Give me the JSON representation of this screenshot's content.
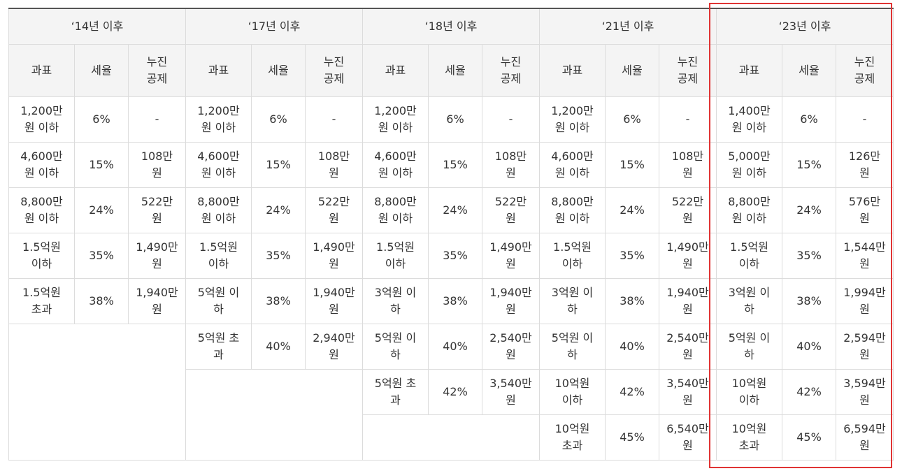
{
  "periods": [
    "‘14년 이후",
    "‘17년 이후",
    "‘18년 이후",
    "‘21년 이후",
    "‘23년 이후"
  ],
  "columns": {
    "base": "과표",
    "rate": "세율",
    "deduction": "누진\n공제"
  },
  "p14": [
    [
      "1,200만\n원 이하",
      "6%",
      "-"
    ],
    [
      "4,600만\n원 이하",
      "15%",
      "108만\n원"
    ],
    [
      "8,800만\n원 이하",
      "24%",
      "522만\n원"
    ],
    [
      "1.5억원\n이하",
      "35%",
      "1,490만\n원"
    ],
    [
      "1.5억원\n초과",
      "38%",
      "1,940만\n원"
    ]
  ],
  "p17": [
    [
      "1,200만\n원 이하",
      "6%",
      "-"
    ],
    [
      "4,600만\n원 이하",
      "15%",
      "108만\n원"
    ],
    [
      "8,800만\n원 이하",
      "24%",
      "522만\n원"
    ],
    [
      "1.5억원\n이하",
      "35%",
      "1,490만\n원"
    ],
    [
      "5억원 이\n하",
      "38%",
      "1,940만\n원"
    ],
    [
      "5억원 초\n과",
      "40%",
      "2,940만\n원"
    ]
  ],
  "p18": [
    [
      "1,200만\n원 이하",
      "6%",
      "-"
    ],
    [
      "4,600만\n원 이하",
      "15%",
      "108만\n원"
    ],
    [
      "8,800만\n원 이하",
      "24%",
      "522만\n원"
    ],
    [
      "1.5억원\n이하",
      "35%",
      "1,490만\n원"
    ],
    [
      "3억원 이\n하",
      "38%",
      "1,940만\n원"
    ],
    [
      "5억원 이\n하",
      "40%",
      "2,540만\n원"
    ],
    [
      "5억원 초\n과",
      "42%",
      "3,540만\n원"
    ]
  ],
  "p21": [
    [
      "1,200만\n원 이하",
      "6%",
      "-"
    ],
    [
      "4,600만\n원 이하",
      "15%",
      "108만\n원"
    ],
    [
      "8,800만\n원 이하",
      "24%",
      "522만\n원"
    ],
    [
      "1.5억원\n이하",
      "35%",
      "1,490만\n원"
    ],
    [
      "3억원 이\n하",
      "38%",
      "1,940만\n원"
    ],
    [
      "5억원 이\n하",
      "40%",
      "2,540만\n원"
    ],
    [
      "10억원\n이하",
      "42%",
      "3,540만\n원"
    ],
    [
      "10억원\n초과",
      "45%",
      "6,540만\n원"
    ]
  ],
  "p23": [
    [
      "1,400만\n원 이하",
      "6%",
      "-"
    ],
    [
      "5,000만\n원 이하",
      "15%",
      "126만\n원"
    ],
    [
      "8,800만\n원 이하",
      "24%",
      "576만\n원"
    ],
    [
      "1.5억원\n이하",
      "35%",
      "1,544만\n원"
    ],
    [
      "3억원 이\n하",
      "38%",
      "1,994만\n원"
    ],
    [
      "5억원 이\n하",
      "40%",
      "2,594만\n원"
    ],
    [
      "10억원\n이하",
      "42%",
      "3,594만\n원"
    ],
    [
      "10억원\n초과",
      "45%",
      "6,594만\n원"
    ]
  ],
  "colors": {
    "header_bg": "#f4f4f4",
    "border": "#dcdcdc",
    "highlight": "#e03434"
  }
}
